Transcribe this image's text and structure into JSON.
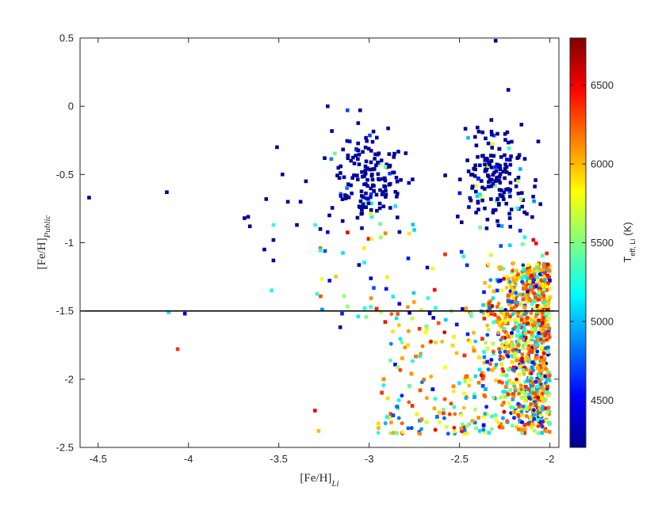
{
  "chart_data": {
    "type": "scatter",
    "xlabel_main": "[Fe/H]",
    "xlabel_sub": "Li",
    "ylabel_main": "[Fe/H]",
    "ylabel_sub": "Public",
    "xlim": [
      -4.6,
      -1.95
    ],
    "ylim": [
      -2.5,
      0.5
    ],
    "xticks": [
      -4.5,
      -4,
      -3.5,
      -3,
      -2.5,
      -2
    ],
    "xtick_labels": [
      "-4.5",
      "-4",
      "-3.5",
      "-3",
      "-2.5",
      "-2"
    ],
    "yticks": [
      0.5,
      0,
      -0.5,
      -1,
      -1.5,
      -2,
      -2.5
    ],
    "ytick_labels": [
      "0.5",
      "0",
      "-0.5",
      "-1",
      "-1.5",
      "-2",
      "-2.5"
    ],
    "reference_line_y": -1.5,
    "grid": false,
    "colormap": "jet",
    "colorbar": {
      "label": "T",
      "label_sub": "eff, Li",
      "label_unit": "(K)",
      "range": [
        4200,
        6800
      ],
      "ticks": [
        4500,
        5000,
        5500,
        6000,
        6500
      ],
      "tick_labels": [
        "4500",
        "5000",
        "5500",
        "6000",
        "6500"
      ]
    },
    "points": [
      {
        "x": -4.55,
        "y": -0.67,
        "t": 4250
      },
      {
        "x": -4.12,
        "y": -0.63,
        "t": 4250
      },
      {
        "x": -4.11,
        "y": -1.51,
        "t": 5100
      },
      {
        "x": -4.02,
        "y": -1.52,
        "t": 4400
      },
      {
        "x": -4.06,
        "y": -1.78,
        "t": 6350
      },
      {
        "x": -3.69,
        "y": -0.82,
        "t": 4250
      },
      {
        "x": -3.67,
        "y": -0.81,
        "t": 4250
      },
      {
        "x": -3.66,
        "y": -0.88,
        "t": 4250
      },
      {
        "x": -3.57,
        "y": -0.68,
        "t": 4250
      },
      {
        "x": -3.53,
        "y": -0.87,
        "t": 5300
      },
      {
        "x": -3.53,
        "y": -0.98,
        "t": 4250
      },
      {
        "x": -3.53,
        "y": -1.13,
        "t": 4300
      },
      {
        "x": -3.54,
        "y": -1.35,
        "t": 5200
      },
      {
        "x": -3.58,
        "y": -1.05,
        "t": 4250
      },
      {
        "x": -3.51,
        "y": -0.3,
        "t": 4250
      },
      {
        "x": -3.48,
        "y": -0.5,
        "t": 4250
      },
      {
        "x": -3.45,
        "y": -0.7,
        "t": 4250
      },
      {
        "x": -3.4,
        "y": -0.87,
        "t": 4250
      },
      {
        "x": -3.38,
        "y": -0.7,
        "t": 4250
      },
      {
        "x": -3.35,
        "y": -0.55,
        "t": 4250
      },
      {
        "x": -3.23,
        "y": 0.0,
        "t": 4250
      },
      {
        "x": -3.22,
        "y": -0.8,
        "t": 4250
      },
      {
        "x": -3.27,
        "y": -0.9,
        "t": 4250
      },
      {
        "x": -3.26,
        "y": -1.49,
        "t": 4900
      },
      {
        "x": -3.3,
        "y": -2.23,
        "t": 6500
      },
      {
        "x": -3.28,
        "y": -2.38,
        "t": 6000
      },
      {
        "x": -3.12,
        "y": -0.03,
        "t": 4700
      },
      {
        "x": -3.05,
        "y": -0.03,
        "t": 4250
      },
      {
        "x": -3.16,
        "y": -1.62,
        "t": 4300
      },
      {
        "x": -3.15,
        "y": -1.52,
        "t": 4600
      },
      {
        "x": -2.3,
        "y": 0.48,
        "t": 4250
      },
      {
        "x": -2.23,
        "y": 0.12,
        "t": 4250
      }
    ]
  }
}
